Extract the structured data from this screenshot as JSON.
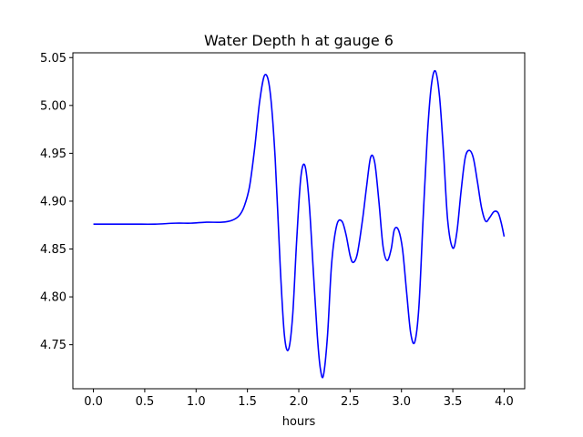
{
  "chart_data": {
    "type": "line",
    "title": "Water Depth h at gauge 6",
    "xlabel": "hours",
    "ylabel": "",
    "xlim": [
      -0.2,
      4.2
    ],
    "ylim": [
      4.704,
      5.055
    ],
    "x_ticks": [
      0.0,
      0.5,
      1.0,
      1.5,
      2.0,
      2.5,
      3.0,
      3.5,
      4.0
    ],
    "x_tick_labels": [
      "0.0",
      "0.5",
      "1.0",
      "1.5",
      "2.0",
      "2.5",
      "3.0",
      "3.5",
      "4.0"
    ],
    "y_ticks": [
      4.75,
      4.8,
      4.85,
      4.9,
      4.95,
      5.0,
      5.05
    ],
    "y_tick_labels": [
      "4.75",
      "4.80",
      "4.85",
      "4.90",
      "4.95",
      "5.00",
      "5.05"
    ],
    "grid": false,
    "series": [
      {
        "color": "#0000ff",
        "x": [
          0.0,
          0.2,
          0.4,
          0.6,
          0.8,
          0.95,
          1.1,
          1.25,
          1.35,
          1.42,
          1.47,
          1.52,
          1.57,
          1.62,
          1.67,
          1.72,
          1.77,
          1.82,
          1.86,
          1.9,
          1.94,
          1.98,
          2.02,
          2.06,
          2.1,
          2.14,
          2.18,
          2.21,
          2.24,
          2.28,
          2.32,
          2.37,
          2.42,
          2.46,
          2.5,
          2.53,
          2.57,
          2.62,
          2.66,
          2.7,
          2.74,
          2.78,
          2.82,
          2.86,
          2.9,
          2.93,
          2.97,
          3.01,
          3.05,
          3.09,
          3.13,
          3.17,
          3.21,
          3.25,
          3.29,
          3.33,
          3.37,
          3.41,
          3.45,
          3.5,
          3.54,
          3.58,
          3.62,
          3.66,
          3.7,
          3.74,
          3.78,
          3.82,
          3.86,
          3.9,
          3.94,
          3.97,
          4.0
        ],
        "y": [
          4.876,
          4.876,
          4.876,
          4.876,
          4.877,
          4.877,
          4.878,
          4.878,
          4.88,
          4.885,
          4.895,
          4.915,
          4.955,
          5.005,
          5.032,
          5.015,
          4.945,
          4.83,
          4.76,
          4.745,
          4.78,
          4.86,
          4.925,
          4.937,
          4.9,
          4.83,
          4.76,
          4.725,
          4.718,
          4.76,
          4.835,
          4.875,
          4.879,
          4.865,
          4.843,
          4.836,
          4.845,
          4.88,
          4.915,
          4.946,
          4.94,
          4.9,
          4.853,
          4.838,
          4.85,
          4.87,
          4.87,
          4.85,
          4.805,
          4.762,
          4.753,
          4.79,
          4.88,
          4.965,
          5.02,
          5.036,
          5.01,
          4.95,
          4.88,
          4.851,
          4.868,
          4.91,
          4.945,
          4.953,
          4.945,
          4.92,
          4.893,
          4.879,
          4.883,
          4.889,
          4.888,
          4.878,
          4.863
        ]
      }
    ]
  }
}
